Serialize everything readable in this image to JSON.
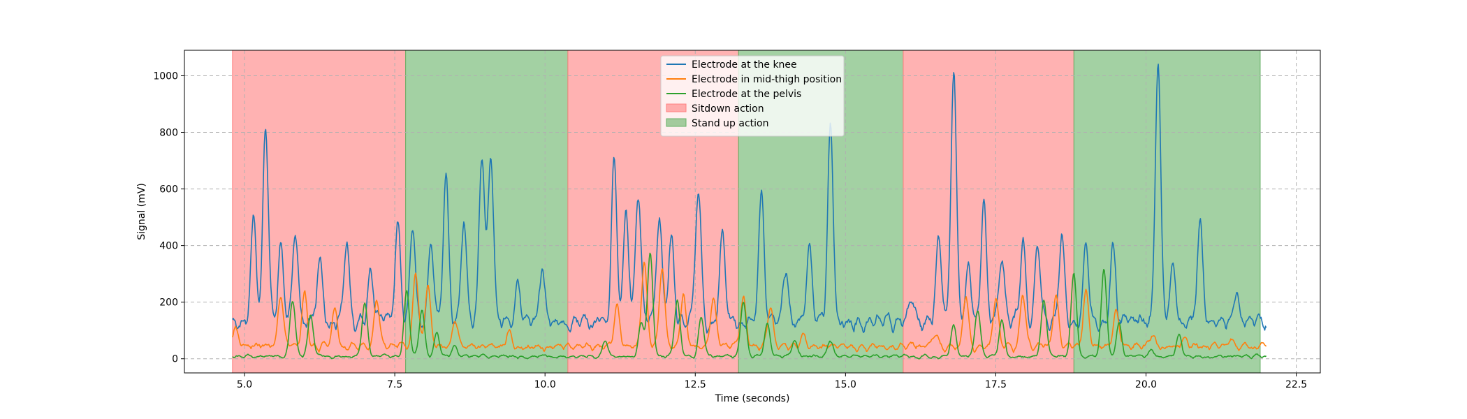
{
  "chart_data": {
    "type": "line",
    "title": "",
    "xlabel": "Time (seconds)",
    "ylabel": "Signal (mV)",
    "xlim": [
      4.0,
      22.9
    ],
    "ylim": [
      -50,
      1090
    ],
    "xticks": [
      5.0,
      7.5,
      10.0,
      12.5,
      15.0,
      17.5,
      20.0,
      22.5
    ],
    "xtick_labels": [
      "5.0",
      "7.5",
      "10.0",
      "12.5",
      "15.0",
      "17.5",
      "20.0",
      "22.5"
    ],
    "yticks": [
      0,
      200,
      400,
      600,
      800,
      1000
    ],
    "ytick_labels": [
      "0",
      "200",
      "400",
      "600",
      "800",
      "1000"
    ],
    "grid": true,
    "legend_position": "top-center",
    "t_start": 4.8,
    "t_end": 22.0,
    "series": [
      {
        "name": "Electrode at the knee",
        "color": "#1f77b4",
        "baseline": 110,
        "noise": 55,
        "peaks": [
          [
            5.35,
            820
          ],
          [
            5.15,
            480
          ],
          [
            5.6,
            380
          ],
          [
            5.85,
            440
          ],
          [
            6.25,
            330
          ],
          [
            6.7,
            400
          ],
          [
            7.1,
            300
          ],
          [
            7.55,
            450
          ],
          [
            7.8,
            440
          ],
          [
            8.1,
            380
          ],
          [
            8.35,
            620
          ],
          [
            8.65,
            460
          ],
          [
            8.95,
            700
          ],
          [
            9.1,
            690
          ],
          [
            9.55,
            240
          ],
          [
            9.95,
            290
          ],
          [
            11.15,
            690
          ],
          [
            11.35,
            500
          ],
          [
            11.55,
            560
          ],
          [
            11.9,
            480
          ],
          [
            12.1,
            420
          ],
          [
            12.55,
            580
          ],
          [
            12.95,
            440
          ],
          [
            13.6,
            560
          ],
          [
            14.0,
            310
          ],
          [
            14.4,
            380
          ],
          [
            14.75,
            800
          ],
          [
            16.1,
            190
          ],
          [
            16.55,
            380
          ],
          [
            16.8,
            1010
          ],
          [
            17.05,
            300
          ],
          [
            17.3,
            540
          ],
          [
            17.6,
            330
          ],
          [
            17.95,
            380
          ],
          [
            18.2,
            360
          ],
          [
            18.6,
            420
          ],
          [
            19.0,
            380
          ],
          [
            19.45,
            380
          ],
          [
            20.2,
            1030
          ],
          [
            20.45,
            320
          ],
          [
            20.9,
            450
          ],
          [
            21.5,
            200
          ]
        ]
      },
      {
        "name": "Electrode in mid-thigh position",
        "color": "#ff7f0e",
        "baseline": 35,
        "noise": 25,
        "peaks": [
          [
            4.85,
            100
          ],
          [
            5.6,
            210
          ],
          [
            6.0,
            220
          ],
          [
            6.5,
            170
          ],
          [
            7.2,
            200
          ],
          [
            7.85,
            300
          ],
          [
            8.05,
            250
          ],
          [
            8.5,
            120
          ],
          [
            9.4,
            80
          ],
          [
            11.2,
            180
          ],
          [
            11.65,
            330
          ],
          [
            11.95,
            310
          ],
          [
            12.3,
            220
          ],
          [
            12.8,
            200
          ],
          [
            13.3,
            210
          ],
          [
            13.75,
            180
          ],
          [
            14.3,
            80
          ],
          [
            16.5,
            80
          ],
          [
            17.0,
            210
          ],
          [
            17.5,
            200
          ],
          [
            17.95,
            210
          ],
          [
            18.5,
            210
          ],
          [
            19.0,
            230
          ],
          [
            19.5,
            160
          ],
          [
            20.1,
            80
          ],
          [
            20.65,
            70
          ],
          [
            21.4,
            60
          ]
        ]
      },
      {
        "name": "Electrode at the pelvis",
        "color": "#2ca02c",
        "baseline": 4,
        "noise": 12,
        "peaks": [
          [
            5.8,
            200
          ],
          [
            6.1,
            150
          ],
          [
            7.0,
            190
          ],
          [
            7.7,
            230
          ],
          [
            7.95,
            170
          ],
          [
            8.2,
            90
          ],
          [
            8.5,
            40
          ],
          [
            11.0,
            60
          ],
          [
            11.6,
            120
          ],
          [
            11.75,
            370
          ],
          [
            12.2,
            200
          ],
          [
            12.6,
            140
          ],
          [
            13.3,
            200
          ],
          [
            13.7,
            120
          ],
          [
            14.15,
            60
          ],
          [
            14.75,
            60
          ],
          [
            16.8,
            110
          ],
          [
            17.2,
            170
          ],
          [
            17.6,
            130
          ],
          [
            18.3,
            200
          ],
          [
            18.8,
            300
          ],
          [
            19.3,
            320
          ],
          [
            19.55,
            120
          ],
          [
            20.1,
            30
          ],
          [
            20.55,
            80
          ]
        ]
      }
    ],
    "bands": [
      {
        "start": 4.8,
        "end": 7.68,
        "label": "Sitdown action",
        "color": "#ff7f7f"
      },
      {
        "start": 7.68,
        "end": 10.38,
        "label": "Stand up action",
        "color": "#66b266"
      },
      {
        "start": 10.38,
        "end": 13.22,
        "label": "Sitdown action",
        "color": "#ff7f7f"
      },
      {
        "start": 13.22,
        "end": 15.96,
        "label": "Stand up action",
        "color": "#66b266"
      },
      {
        "start": 15.96,
        "end": 18.8,
        "label": "Sitdown action",
        "color": "#ff7f7f"
      },
      {
        "start": 18.8,
        "end": 21.9,
        "label": "Stand up action",
        "color": "#66b266"
      }
    ],
    "legend": [
      {
        "label": "Electrode at the knee",
        "kind": "line",
        "color": "#1f77b4"
      },
      {
        "label": "Electrode in mid-thigh position",
        "kind": "line",
        "color": "#ff7f0e"
      },
      {
        "label": "Electrode at the pelvis",
        "kind": "line",
        "color": "#2ca02c"
      },
      {
        "label": "Sitdown action",
        "kind": "patch",
        "color": "#ff7f7f"
      },
      {
        "label": "Stand up action",
        "kind": "patch",
        "color": "#66b266"
      }
    ]
  }
}
